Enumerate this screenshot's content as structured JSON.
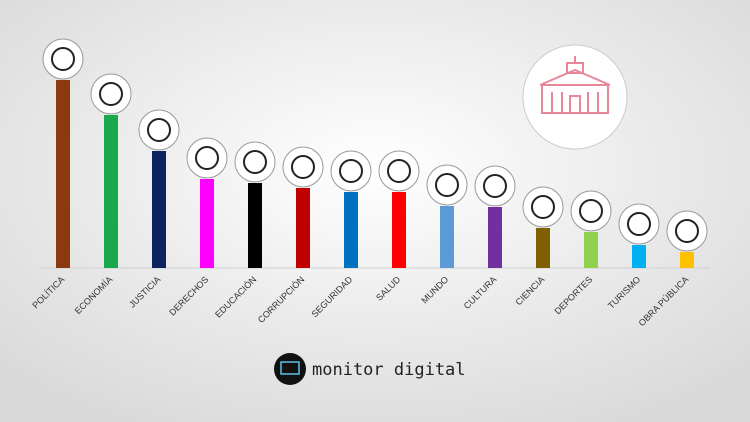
{
  "chart_data": {
    "type": "bar",
    "categories": [
      "POLÍTICA",
      "ECONOMÍA",
      "JUSTICIA",
      "DERECHOS",
      "EDUCACIÓN",
      "CORRUPCIÓN",
      "SEGURIDAD",
      "SALUD",
      "MUNDO",
      "CULTURA",
      "CIENCIA",
      "DEPORTES",
      "TURISMO",
      "OBRA PÚBLICA"
    ],
    "values": [
      188,
      153,
      117,
      89,
      85,
      80,
      76,
      76,
      62,
      61,
      40,
      36,
      23,
      16
    ],
    "colors": [
      "#8b3a0f",
      "#1aa84f",
      "#0d2360",
      "#ff00ff",
      "#000000",
      "#c00000",
      "#0070c0",
      "#ff0000",
      "#5b9bd5",
      "#7030a0",
      "#7f6000",
      "#92d050",
      "#00b0f0",
      "#ffc000"
    ],
    "ylim": [
      0,
      188
    ]
  },
  "brand": "monitor digital"
}
